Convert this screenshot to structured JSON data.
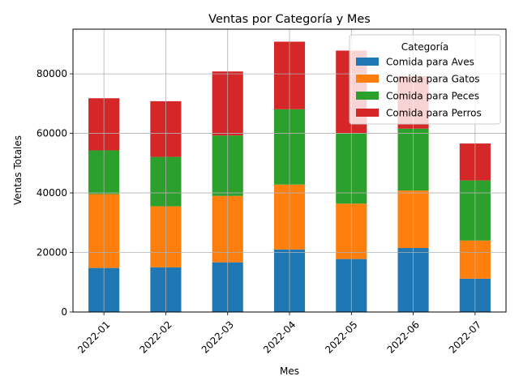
{
  "chart_data": {
    "type": "bar",
    "stacked": true,
    "title": "Ventas por Categoría y Mes",
    "xlabel": "Mes",
    "ylabel": "Ventas Totales",
    "categories": [
      "2022-01",
      "2022-02",
      "2022-03",
      "2022-04",
      "2022-05",
      "2022-06",
      "2022-07"
    ],
    "ylim": [
      0,
      95000
    ],
    "yticks": [
      0,
      20000,
      40000,
      60000,
      80000
    ],
    "grid": true,
    "legend": {
      "title": "Categoría",
      "placement": "top-right"
    },
    "series": [
      {
        "name": "Comida para Aves",
        "color": "#1f77b4",
        "values": [
          14800,
          15000,
          16700,
          21000,
          17800,
          21500,
          11200
        ]
      },
      {
        "name": "Comida para Gatos",
        "color": "#ff7f0e",
        "values": [
          24800,
          20500,
          22300,
          21800,
          18600,
          19300,
          12800
        ]
      },
      {
        "name": "Comida para Peces",
        "color": "#2ca02c",
        "values": [
          14700,
          16600,
          20300,
          25300,
          23700,
          20800,
          20200
        ]
      },
      {
        "name": "Comida para Perros",
        "color": "#d62728",
        "values": [
          17500,
          18700,
          21500,
          22700,
          27700,
          17600,
          12400
        ]
      }
    ]
  }
}
